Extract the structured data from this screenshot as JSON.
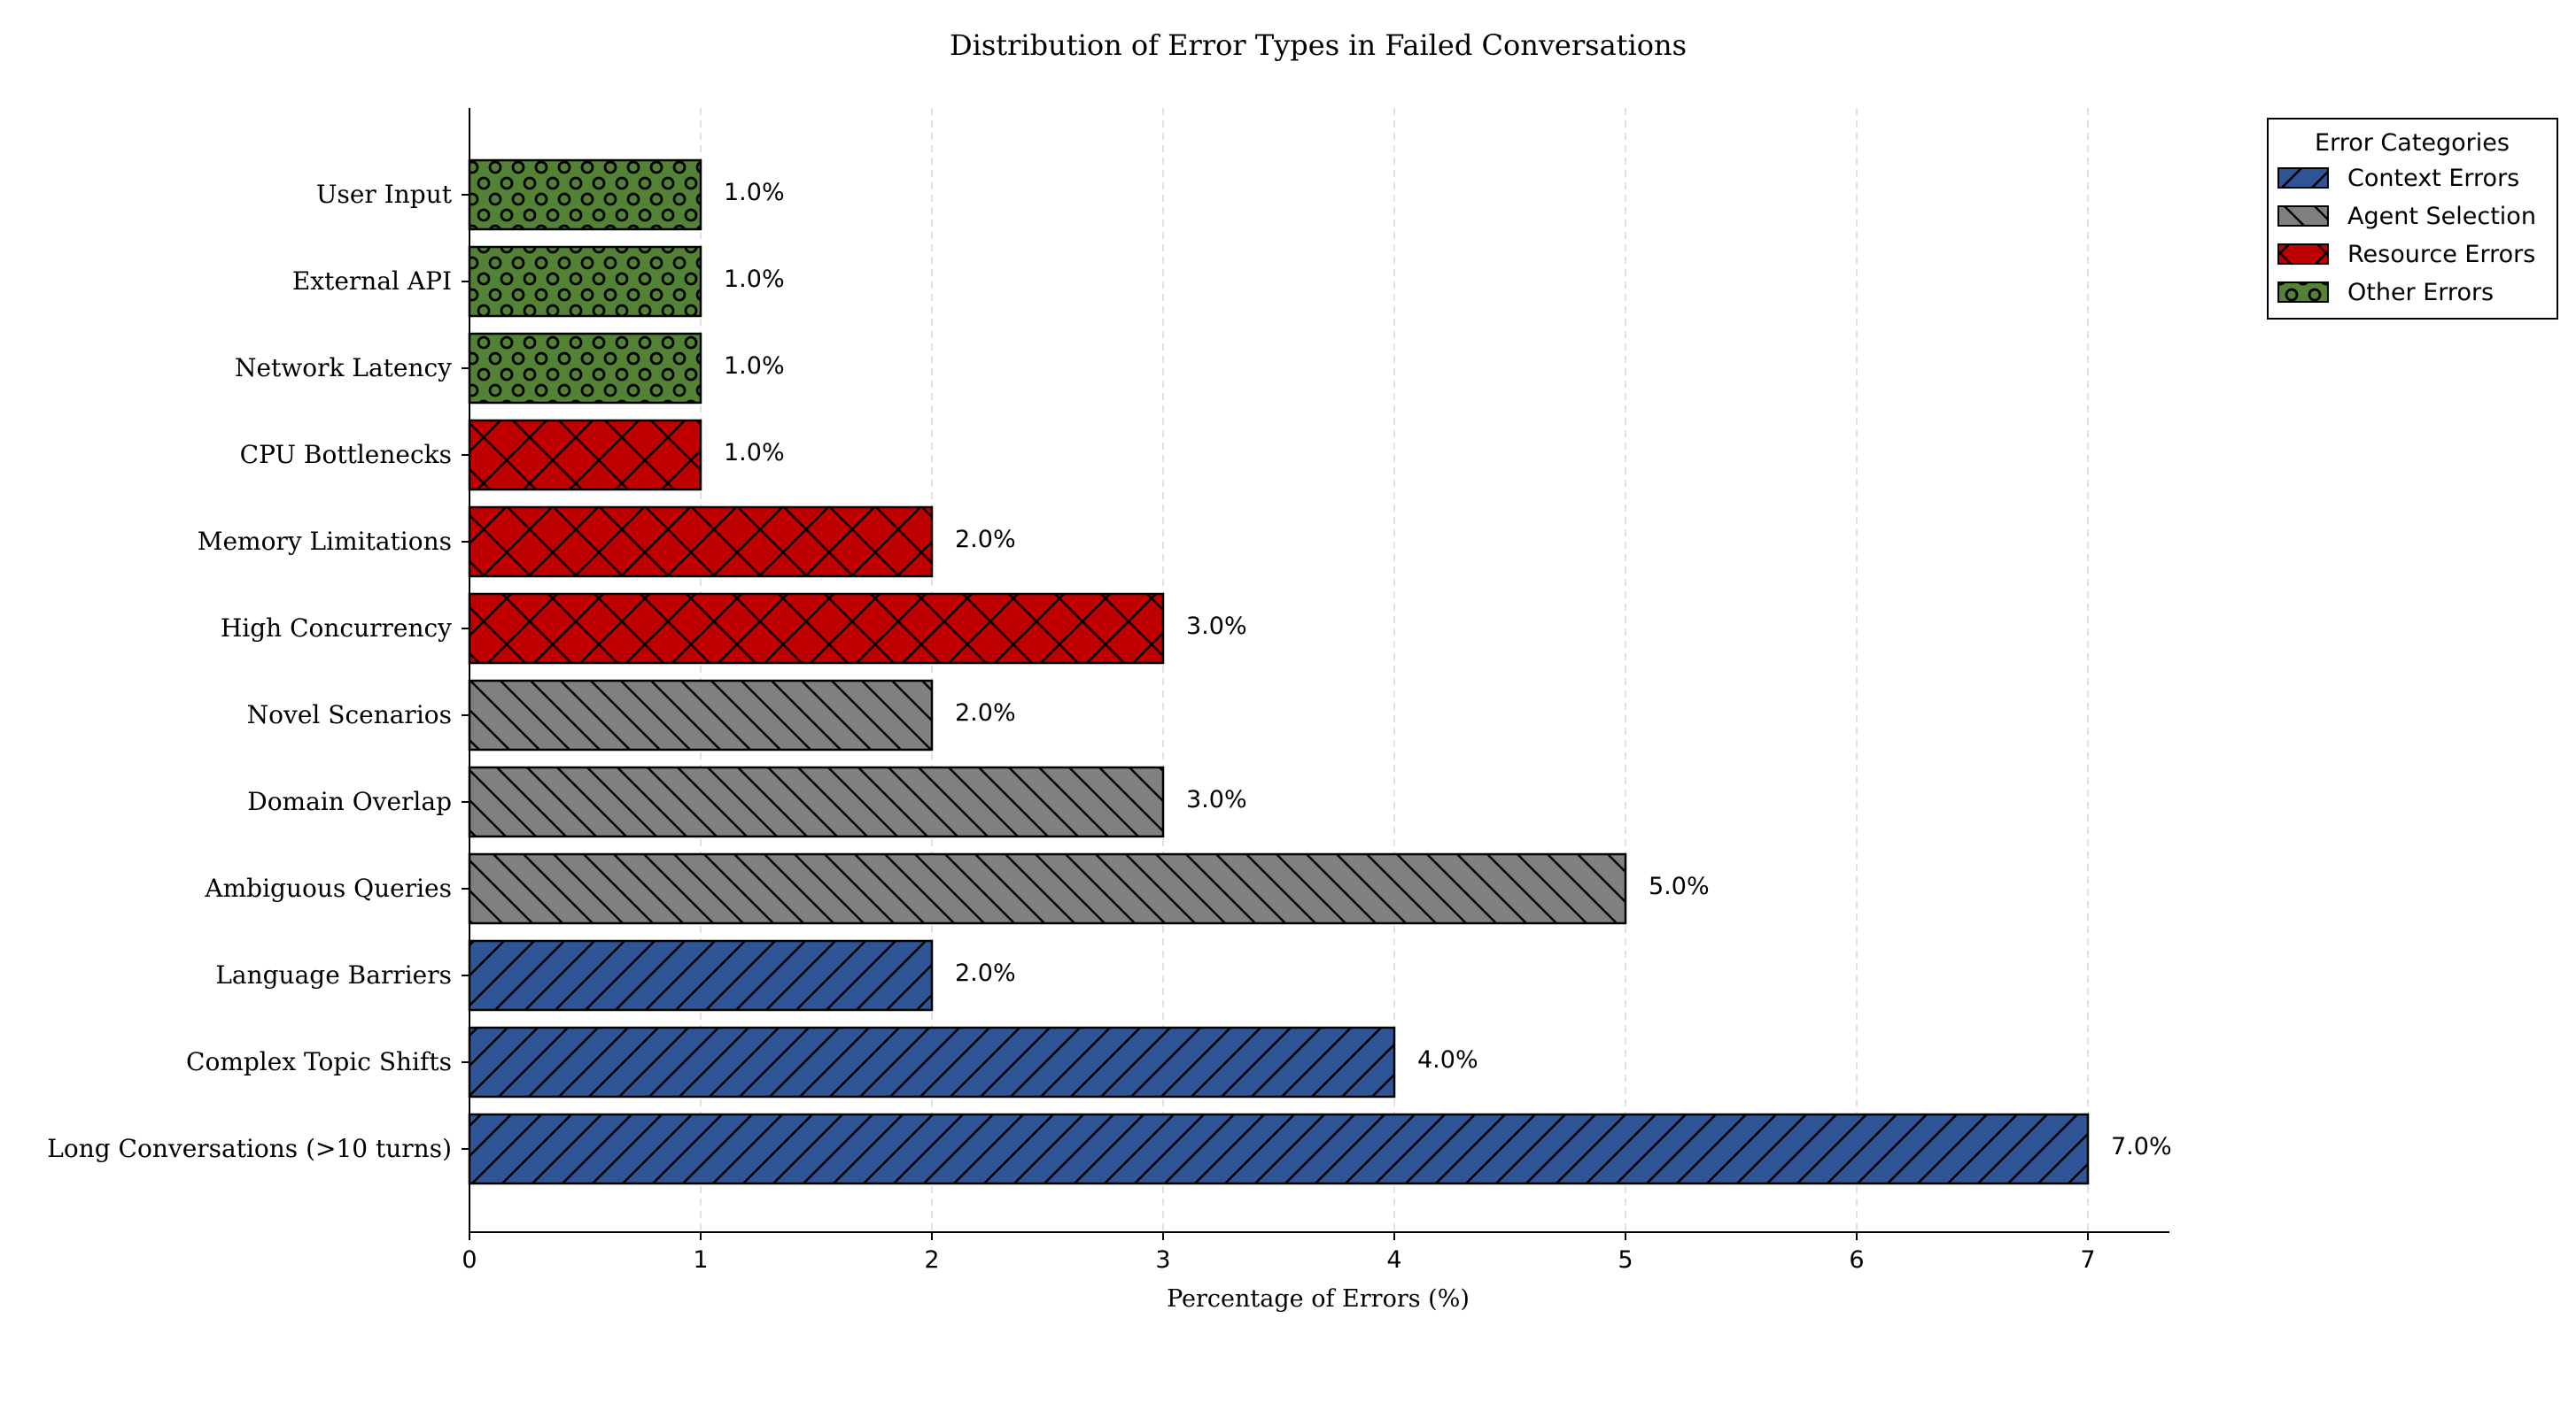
{
  "chart_data": {
    "type": "bar",
    "orientation": "horizontal",
    "title": "Distribution of Error Types in Failed Conversations",
    "xlabel": "Percentage of Errors (%)",
    "ylabel": "",
    "xlim": [
      0,
      7.35
    ],
    "xticks": [
      0,
      1,
      2,
      3,
      4,
      5,
      6,
      7
    ],
    "grid": "x-dashed",
    "legend": {
      "title": "Error Categories",
      "position": "top-right",
      "entries": [
        {
          "name": "Context Errors",
          "color": "#2f5597",
          "pattern": "forward-slash"
        },
        {
          "name": "Agent Selection",
          "color": "#808080",
          "pattern": "back-slash"
        },
        {
          "name": "Resource Errors",
          "color": "#c00000",
          "pattern": "cross"
        },
        {
          "name": "Other Errors",
          "color": "#548235",
          "pattern": "circles"
        }
      ]
    },
    "categories": [
      "Long Conversations (>10 turns)",
      "Complex Topic Shifts",
      "Language Barriers",
      "Ambiguous Queries",
      "Domain Overlap",
      "Novel Scenarios",
      "High Concurrency",
      "Memory Limitations",
      "CPU Bottlenecks",
      "Network Latency",
      "External API",
      "User Input"
    ],
    "values": [
      7,
      4,
      2,
      5,
      3,
      2,
      3,
      2,
      1,
      1,
      1,
      1
    ],
    "value_labels": [
      "7.0%",
      "4.0%",
      "2.0%",
      "5.0%",
      "3.0%",
      "2.0%",
      "3.0%",
      "2.0%",
      "1.0%",
      "1.0%",
      "1.0%",
      "1.0%"
    ],
    "bar_groups": [
      0,
      0,
      0,
      1,
      1,
      1,
      2,
      2,
      2,
      3,
      3,
      3
    ]
  }
}
